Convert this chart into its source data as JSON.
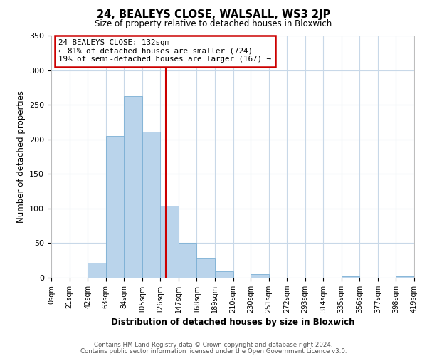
{
  "title": "24, BEALEYS CLOSE, WALSALL, WS3 2JP",
  "subtitle": "Size of property relative to detached houses in Bloxwich",
  "xlabel": "Distribution of detached houses by size in Bloxwich",
  "ylabel": "Number of detached properties",
  "bin_edges": [
    0,
    21,
    42,
    63,
    84,
    105,
    126,
    147,
    168,
    189,
    210,
    230,
    251,
    272,
    293,
    314,
    335,
    356,
    377,
    398,
    419
  ],
  "bin_counts": [
    0,
    0,
    22,
    205,
    262,
    211,
    104,
    50,
    28,
    9,
    0,
    5,
    0,
    0,
    0,
    0,
    2,
    0,
    0,
    2
  ],
  "bar_color": "#bad4eb",
  "bar_edge_color": "#7bafd4",
  "vline_x": 132,
  "vline_color": "#cc0000",
  "ylim": [
    0,
    350
  ],
  "tick_labels": [
    "0sqm",
    "21sqm",
    "42sqm",
    "63sqm",
    "84sqm",
    "105sqm",
    "126sqm",
    "147sqm",
    "168sqm",
    "189sqm",
    "210sqm",
    "230sqm",
    "251sqm",
    "272sqm",
    "293sqm",
    "314sqm",
    "335sqm",
    "356sqm",
    "377sqm",
    "398sqm",
    "419sqm"
  ],
  "annotation_title": "24 BEALEYS CLOSE: 132sqm",
  "annotation_line1": "← 81% of detached houses are smaller (724)",
  "annotation_line2": "19% of semi-detached houses are larger (167) →",
  "annotation_box_color": "#cc0000",
  "footer_line1": "Contains HM Land Registry data © Crown copyright and database right 2024.",
  "footer_line2": "Contains public sector information licensed under the Open Government Licence v3.0.",
  "background_color": "#ffffff",
  "grid_color": "#c8d8e8"
}
